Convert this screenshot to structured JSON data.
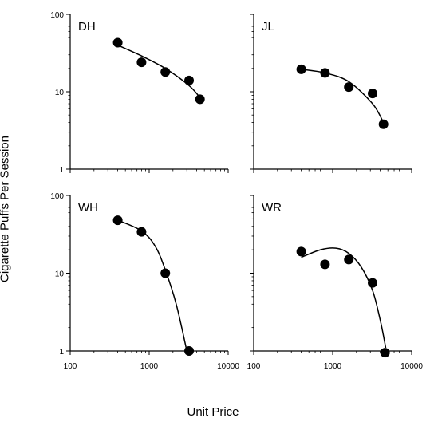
{
  "figure": {
    "ylabel": "Cigarette Puffs Per Session",
    "xlabel": "Unit Price"
  },
  "chart_data": [
    {
      "type": "scatter",
      "panel": "DH",
      "xscale": "log",
      "yscale": "log",
      "xlim": [
        100,
        10000
      ],
      "ylim": [
        1,
        100
      ],
      "xticks": [],
      "yticks": [
        "1",
        "10",
        "100"
      ],
      "x": [
        400,
        800,
        1600,
        3200,
        4400
      ],
      "y": [
        43,
        24,
        18,
        14,
        8
      ],
      "fit": {
        "x": [
          400,
          800,
          1600,
          3200,
          4400
        ],
        "y": [
          40,
          29,
          20,
          12,
          8.4
        ]
      }
    },
    {
      "type": "scatter",
      "panel": "JL",
      "xscale": "log",
      "yscale": "log",
      "xlim": [
        100,
        10000
      ],
      "ylim": [
        1,
        100
      ],
      "xticks": [],
      "yticks": [],
      "x": [
        400,
        800,
        1600,
        3200,
        4400
      ],
      "y": [
        19.5,
        17.5,
        11.5,
        9.5,
        3.8
      ],
      "fit": {
        "x": [
          400,
          800,
          1600,
          3200,
          4400
        ],
        "y": [
          19.5,
          17.5,
          13.5,
          7,
          4
        ]
      }
    },
    {
      "type": "scatter",
      "panel": "WH",
      "xscale": "log",
      "yscale": "log",
      "xlim": [
        100,
        10000
      ],
      "ylim": [
        1,
        100
      ],
      "xticks": [
        "100",
        "1000",
        "10000"
      ],
      "yticks": [
        "1",
        "10",
        "100"
      ],
      "x": [
        400,
        800,
        1600,
        3200
      ],
      "y": [
        48,
        34,
        10,
        1
      ],
      "fit": {
        "x": [
          400,
          800,
          1200,
          1600,
          2200,
          3000
        ],
        "y": [
          48,
          35,
          22,
          11,
          4,
          1
        ]
      }
    },
    {
      "type": "scatter",
      "panel": "WR",
      "xscale": "log",
      "yscale": "log",
      "xlim": [
        100,
        10000
      ],
      "ylim": [
        1,
        100
      ],
      "xticks": [
        "100",
        "1000",
        "10000"
      ],
      "yticks": [],
      "x": [
        400,
        800,
        1600,
        3200,
        4600
      ],
      "y": [
        19,
        13,
        15,
        7.5,
        0.95
      ],
      "fit": {
        "x": [
          400,
          700,
          1100,
          1600,
          2300,
          3200,
          4000,
          4700
        ],
        "y": [
          16,
          20,
          21,
          18,
          12,
          6,
          2.5,
          1.1
        ]
      }
    }
  ]
}
